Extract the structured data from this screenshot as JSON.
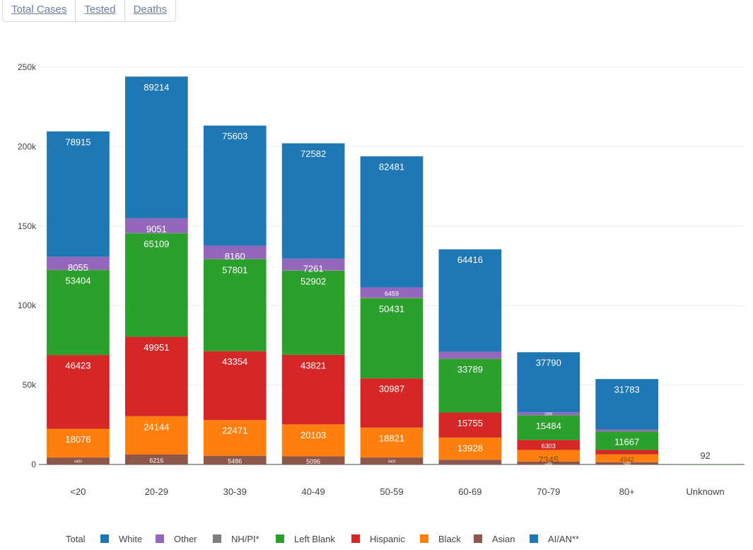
{
  "tabs": [
    {
      "label": "Total Cases"
    },
    {
      "label": "Tested"
    },
    {
      "label": "Deaths"
    }
  ],
  "legend_title": "Total",
  "chart_data": {
    "type": "bar",
    "stacked": true,
    "categories": [
      "<20",
      "20-29",
      "30-39",
      "40-49",
      "50-59",
      "60-69",
      "70-79",
      "80+",
      "Unknown"
    ],
    "ylim": [
      0,
      250000
    ],
    "yticks": [
      "0",
      "50k",
      "100k",
      "150k",
      "200k",
      "250k"
    ],
    "grid": true,
    "legend_position": "bottom",
    "series": [
      {
        "name": "Asian",
        "color": "#8c564b",
        "values": [
          4400,
          6216,
          5486,
          5096,
          4400,
          3000,
          1800,
          1400,
          0
        ],
        "labels": [
          "4400",
          "6216",
          "5486",
          "5096",
          "4400",
          "",
          "1800",
          "1400",
          ""
        ]
      },
      {
        "name": "Black",
        "color": "#ff7f0e",
        "values": [
          18076,
          24144,
          22471,
          20103,
          18821,
          13928,
          7345,
          4942,
          0
        ],
        "labels": [
          "18076",
          "24144",
          "22471",
          "20103",
          "18821",
          "13928",
          "7345",
          "4942",
          ""
        ]
      },
      {
        "name": "Hispanic",
        "color": "#d62728",
        "values": [
          46423,
          49951,
          43354,
          43821,
          30987,
          15755,
          6303,
          2800,
          0
        ],
        "labels": [
          "46423",
          "49951",
          "43354",
          "43821",
          "30987",
          "15755",
          "6303",
          "",
          ""
        ]
      },
      {
        "name": "Left Blank",
        "color": "#2ca02c",
        "values": [
          53404,
          65109,
          57801,
          52902,
          50431,
          33789,
          15484,
          11667,
          92
        ],
        "labels": [
          "53404",
          "65109",
          "57801",
          "52902",
          "50431",
          "33789",
          "15484",
          "11667",
          ""
        ]
      },
      {
        "name": "NH/PI*",
        "color": "#7f7f7f",
        "values": [
          300,
          400,
          350,
          330,
          300,
          200,
          100,
          60,
          0
        ],
        "labels": [
          "",
          "",
          "",
          "",
          "",
          "",
          "",
          "",
          ""
        ]
      },
      {
        "name": "Other",
        "color": "#9467bd",
        "values": [
          8055,
          9051,
          8160,
          7261,
          6459,
          4300,
          1800,
          1100,
          0
        ],
        "labels": [
          "8055",
          "9051",
          "8160",
          "7261",
          "6459",
          "",
          "1800",
          "",
          ""
        ]
      },
      {
        "name": "White",
        "color": "#1f77b4",
        "values": [
          78915,
          89214,
          75603,
          72582,
          82481,
          64416,
          37790,
          31783,
          0
        ],
        "labels": [
          "78915",
          "89214",
          "75603",
          "72582",
          "82481",
          "64416",
          "37790",
          "31783",
          ""
        ]
      }
    ],
    "totals": [
      "",
      "",
      "",
      "",
      "",
      "",
      "",
      "",
      "92"
    ],
    "legend": [
      {
        "name": "White",
        "color": "#1f77b4"
      },
      {
        "name": "Other",
        "color": "#9467bd"
      },
      {
        "name": "NH/PI*",
        "color": "#7f7f7f"
      },
      {
        "name": "Left Blank",
        "color": "#2ca02c"
      },
      {
        "name": "Hispanic",
        "color": "#d62728"
      },
      {
        "name": "Black",
        "color": "#ff7f0e"
      },
      {
        "name": "Asian",
        "color": "#8c564b"
      },
      {
        "name": "AI/AN**",
        "color": "#1f77b4"
      }
    ]
  }
}
